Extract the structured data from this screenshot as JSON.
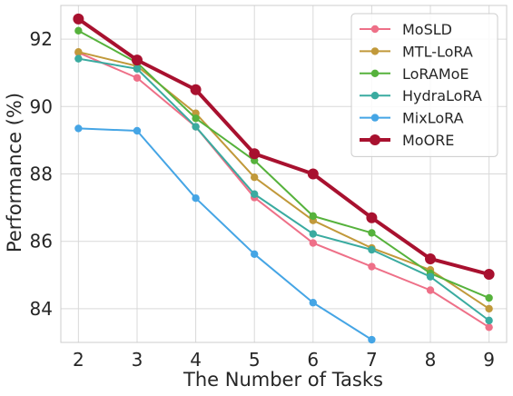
{
  "chart_data": {
    "type": "line",
    "title": "",
    "xlabel": "The Number of Tasks",
    "ylabel": "Performance (%)",
    "x": [
      2,
      3,
      4,
      5,
      6,
      7,
      8,
      9
    ],
    "xlim": [
      1.7,
      9.3
    ],
    "ylim": [
      83,
      93
    ],
    "yticks": [
      84,
      86,
      88,
      90,
      92
    ],
    "grid": true,
    "legend_position": "top-right",
    "series": [
      {
        "name": "MoSLD",
        "color": "#ee7088",
        "values": [
          91.6,
          90.85,
          89.4,
          87.3,
          85.95,
          85.25,
          84.55,
          83.45
        ]
      },
      {
        "name": "MTL-LoRA",
        "color": "#c1993a",
        "values": [
          91.62,
          91.2,
          89.8,
          87.9,
          86.62,
          85.8,
          85.15,
          84.0
        ]
      },
      {
        "name": "LoRAMoE",
        "color": "#56b23c",
        "values": [
          92.25,
          91.3,
          89.65,
          88.4,
          86.75,
          86.25,
          85.05,
          84.32
        ]
      },
      {
        "name": "HydraLoRA",
        "color": "#3aaba0",
        "values": [
          91.42,
          91.12,
          89.4,
          87.4,
          86.22,
          85.75,
          84.95,
          83.65
        ]
      },
      {
        "name": "MixLoRA",
        "color": "#45a5e5",
        "values": [
          89.35,
          89.28,
          87.28,
          85.62,
          84.18,
          83.08,
          null,
          null
        ]
      },
      {
        "name": "MoORE",
        "color": "#a8112f",
        "values": [
          92.6,
          91.38,
          90.5,
          88.6,
          88.0,
          86.7,
          85.48,
          85.02
        ],
        "bold": true
      }
    ]
  }
}
